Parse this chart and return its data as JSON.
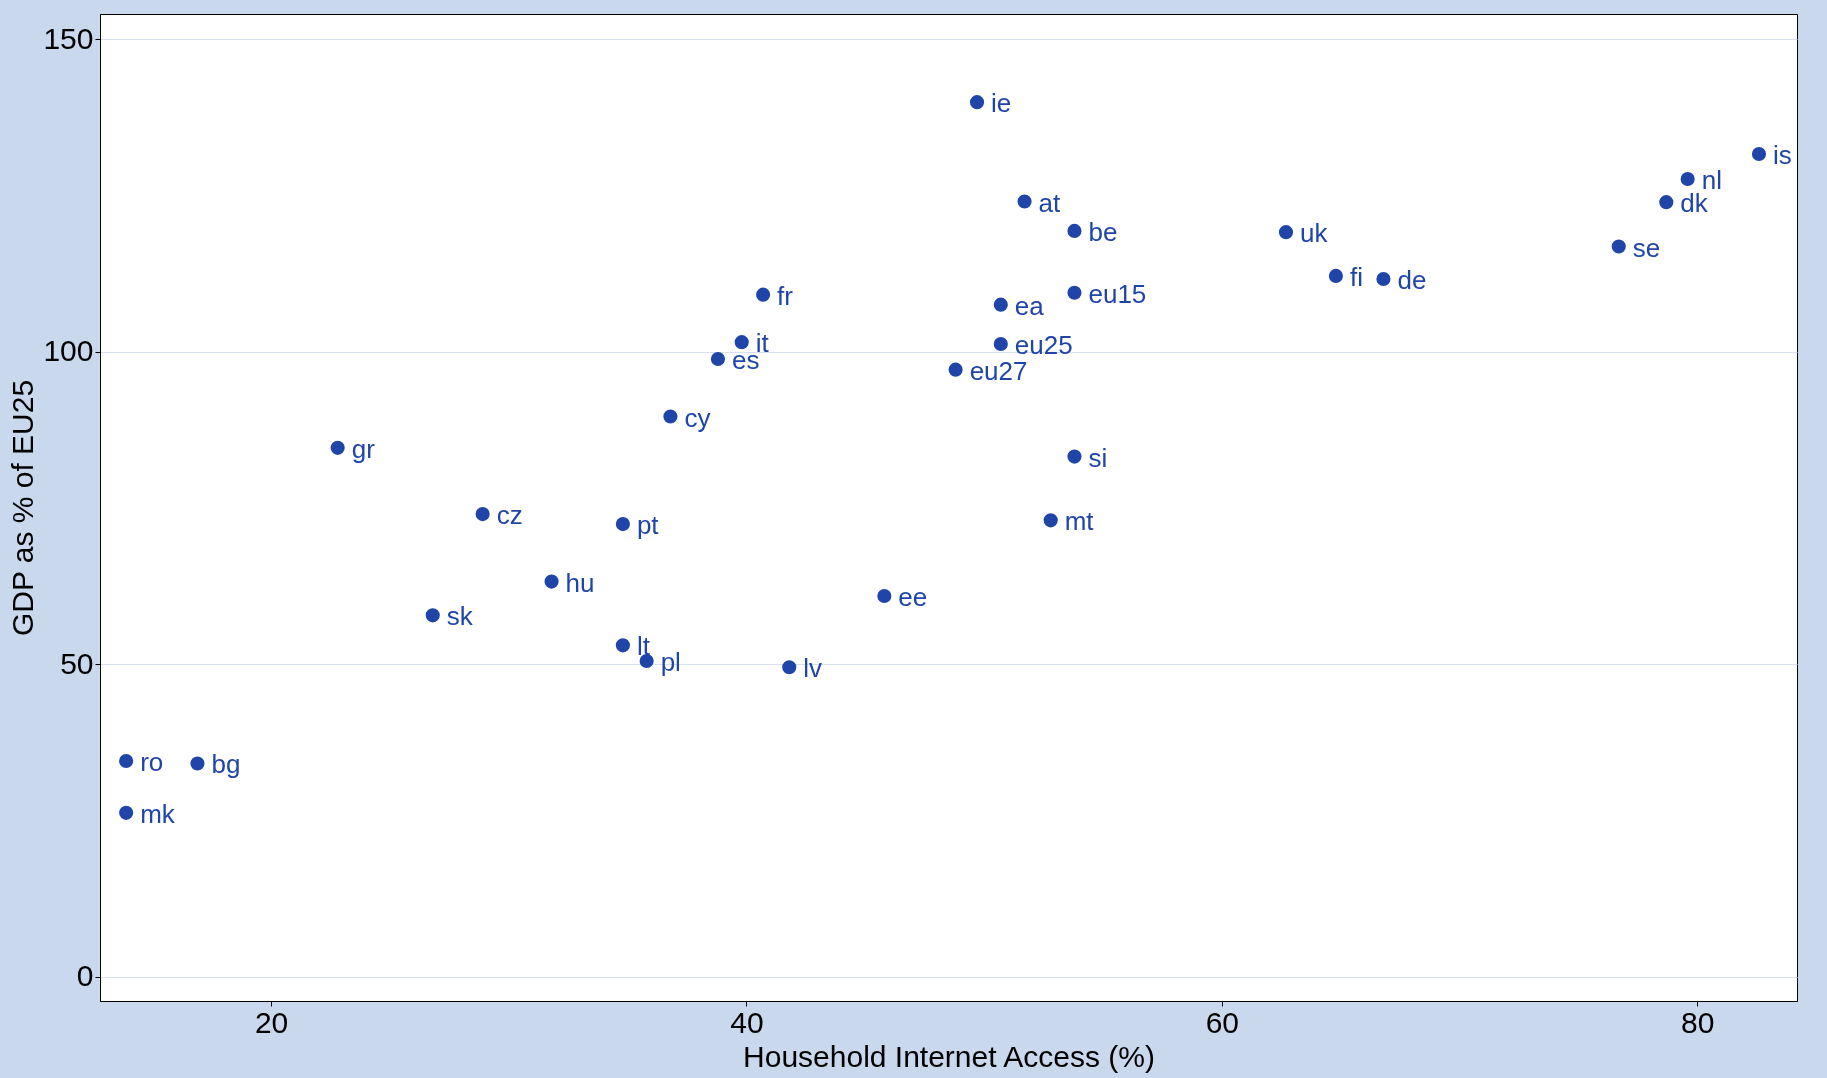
{
  "chart_data": {
    "type": "scatter",
    "xlabel": "Household Internet Access (%)",
    "ylabel": "GDP as % of EU25",
    "xlim": [
      12.8,
      84.2
    ],
    "ylim": [
      -3.9,
      154
    ],
    "xticks": [
      20,
      40,
      60,
      80
    ],
    "yticks": [
      0,
      50,
      100,
      150
    ],
    "grid": "y",
    "marker": "circle",
    "series": [
      {
        "color": "#1f45a8",
        "x": [
          49.7,
          51.7,
          53.8,
          62.7,
          64.8,
          66.8,
          76.7,
          78.7,
          79.6,
          82.6,
          40.7,
          53.8,
          50.7,
          39.8,
          50.7,
          38.8,
          48.8,
          36.8,
          22.8,
          53.8,
          28.9,
          34.8,
          52.8,
          31.8,
          45.8,
          26.8,
          34.8,
          35.8,
          41.8,
          13.9,
          16.9,
          13.9
        ],
        "values": [
          139.9,
          124,
          119.3,
          119.1,
          112.1,
          111.6,
          116.8,
          123.9,
          127.6,
          131.6,
          109.1,
          109.4,
          107.5,
          101.5,
          101.2,
          98.8,
          97.1,
          89.6,
          84.6,
          83.2,
          74,
          72.4,
          73,
          63.2,
          60.9,
          57.8,
          53,
          50.5,
          49.5,
          34.5,
          34.1,
          26.2
        ]
      }
    ],
    "annotations": [
      {
        "text": "ie",
        "x": 49.7,
        "y": 139.9
      },
      {
        "text": "at",
        "x": 51.7,
        "y": 124
      },
      {
        "text": "be",
        "x": 53.8,
        "y": 119.3
      },
      {
        "text": "uk",
        "x": 62.7,
        "y": 119.1
      },
      {
        "text": "fi",
        "x": 64.8,
        "y": 112.1
      },
      {
        "text": "de",
        "x": 66.8,
        "y": 111.6
      },
      {
        "text": "se",
        "x": 76.7,
        "y": 116.8
      },
      {
        "text": "dk",
        "x": 78.7,
        "y": 123.9
      },
      {
        "text": "nl",
        "x": 79.6,
        "y": 127.6
      },
      {
        "text": "is",
        "x": 82.6,
        "y": 131.6
      },
      {
        "text": "fr",
        "x": 40.7,
        "y": 109.1
      },
      {
        "text": "eu15",
        "x": 53.8,
        "y": 109.4
      },
      {
        "text": "ea",
        "x": 50.7,
        "y": 107.5
      },
      {
        "text": "it",
        "x": 39.8,
        "y": 101.5
      },
      {
        "text": "eu25",
        "x": 50.7,
        "y": 101.2
      },
      {
        "text": "es",
        "x": 38.8,
        "y": 98.8
      },
      {
        "text": "eu27",
        "x": 48.8,
        "y": 97.1
      },
      {
        "text": "cy",
        "x": 36.8,
        "y": 89.6
      },
      {
        "text": "gr",
        "x": 22.8,
        "y": 84.6
      },
      {
        "text": "si",
        "x": 53.8,
        "y": 83.2
      },
      {
        "text": "cz",
        "x": 28.9,
        "y": 74
      },
      {
        "text": "pt",
        "x": 34.8,
        "y": 72.4
      },
      {
        "text": "mt",
        "x": 52.8,
        "y": 73
      },
      {
        "text": "hu",
        "x": 31.8,
        "y": 63.2
      },
      {
        "text": "ee",
        "x": 45.8,
        "y": 60.9
      },
      {
        "text": "sk",
        "x": 26.8,
        "y": 57.8
      },
      {
        "text": "lt",
        "x": 34.8,
        "y": 53
      },
      {
        "text": "pl",
        "x": 35.8,
        "y": 50.5
      },
      {
        "text": "lv",
        "x": 41.8,
        "y": 49.5
      },
      {
        "text": "ro",
        "x": 13.9,
        "y": 34.5
      },
      {
        "text": "bg",
        "x": 16.9,
        "y": 34.1
      },
      {
        "text": "mk",
        "x": 13.9,
        "y": 26.2
      }
    ]
  }
}
